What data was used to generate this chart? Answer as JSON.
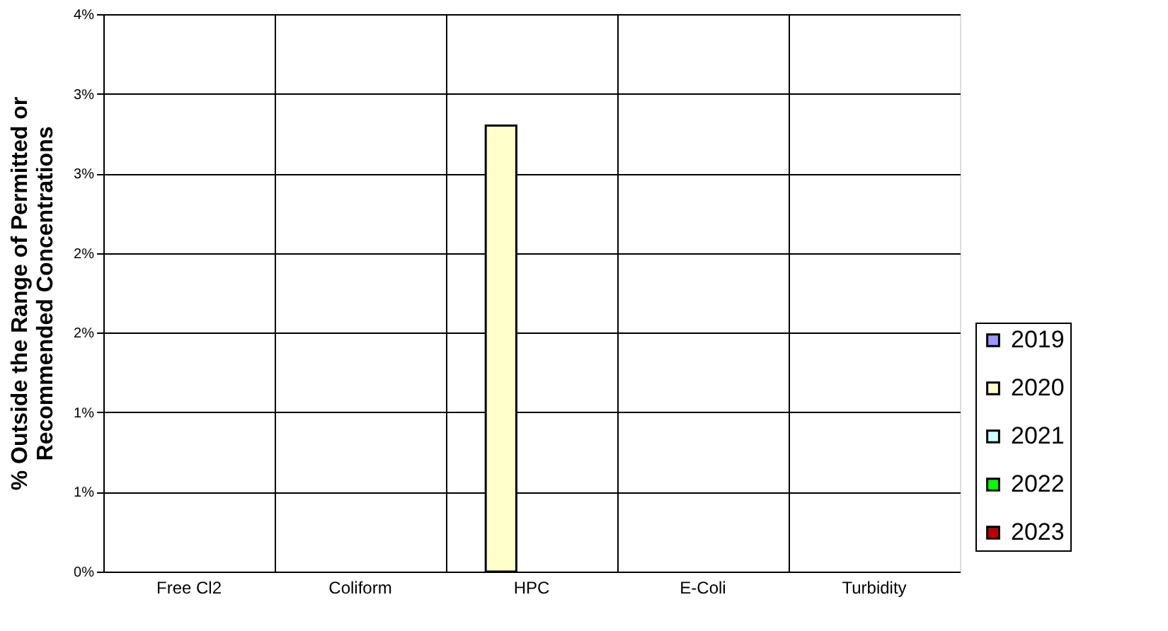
{
  "chart_data": {
    "type": "bar",
    "ylabel": "% Outside the Range of Permitted or\nRecommended Concentrations",
    "categories": [
      "Free Cl2",
      "Coliform",
      "HPC",
      "E-Coli",
      "Turbidity"
    ],
    "series": [
      {
        "name": "2019",
        "color": "#9999ff",
        "values": [
          null,
          null,
          null,
          null,
          null
        ]
      },
      {
        "name": "2020",
        "color": "#ffffcc",
        "values": [
          null,
          null,
          2.8,
          null,
          null
        ]
      },
      {
        "name": "2021",
        "color": "#ccffff",
        "values": [
          null,
          null,
          null,
          null,
          null
        ]
      },
      {
        "name": "2022",
        "color": "#00ff00",
        "values": [
          null,
          null,
          null,
          null,
          null
        ]
      },
      {
        "name": "2023",
        "color": "#c00000",
        "values": [
          null,
          null,
          null,
          null,
          null
        ]
      }
    ],
    "ylim": [
      0,
      3.5
    ],
    "yticks": [
      {
        "value": 0,
        "label": "0%"
      },
      {
        "value": 0.5,
        "label": "1%"
      },
      {
        "value": 1,
        "label": "1%"
      },
      {
        "value": 1.5,
        "label": "2%"
      },
      {
        "value": 2,
        "label": "2%"
      },
      {
        "value": 2.5,
        "label": "3%"
      },
      {
        "value": 3,
        "label": "3%"
      },
      {
        "value": 3.5,
        "label": "4%"
      }
    ],
    "grid": true,
    "legend": "bottom right"
  }
}
